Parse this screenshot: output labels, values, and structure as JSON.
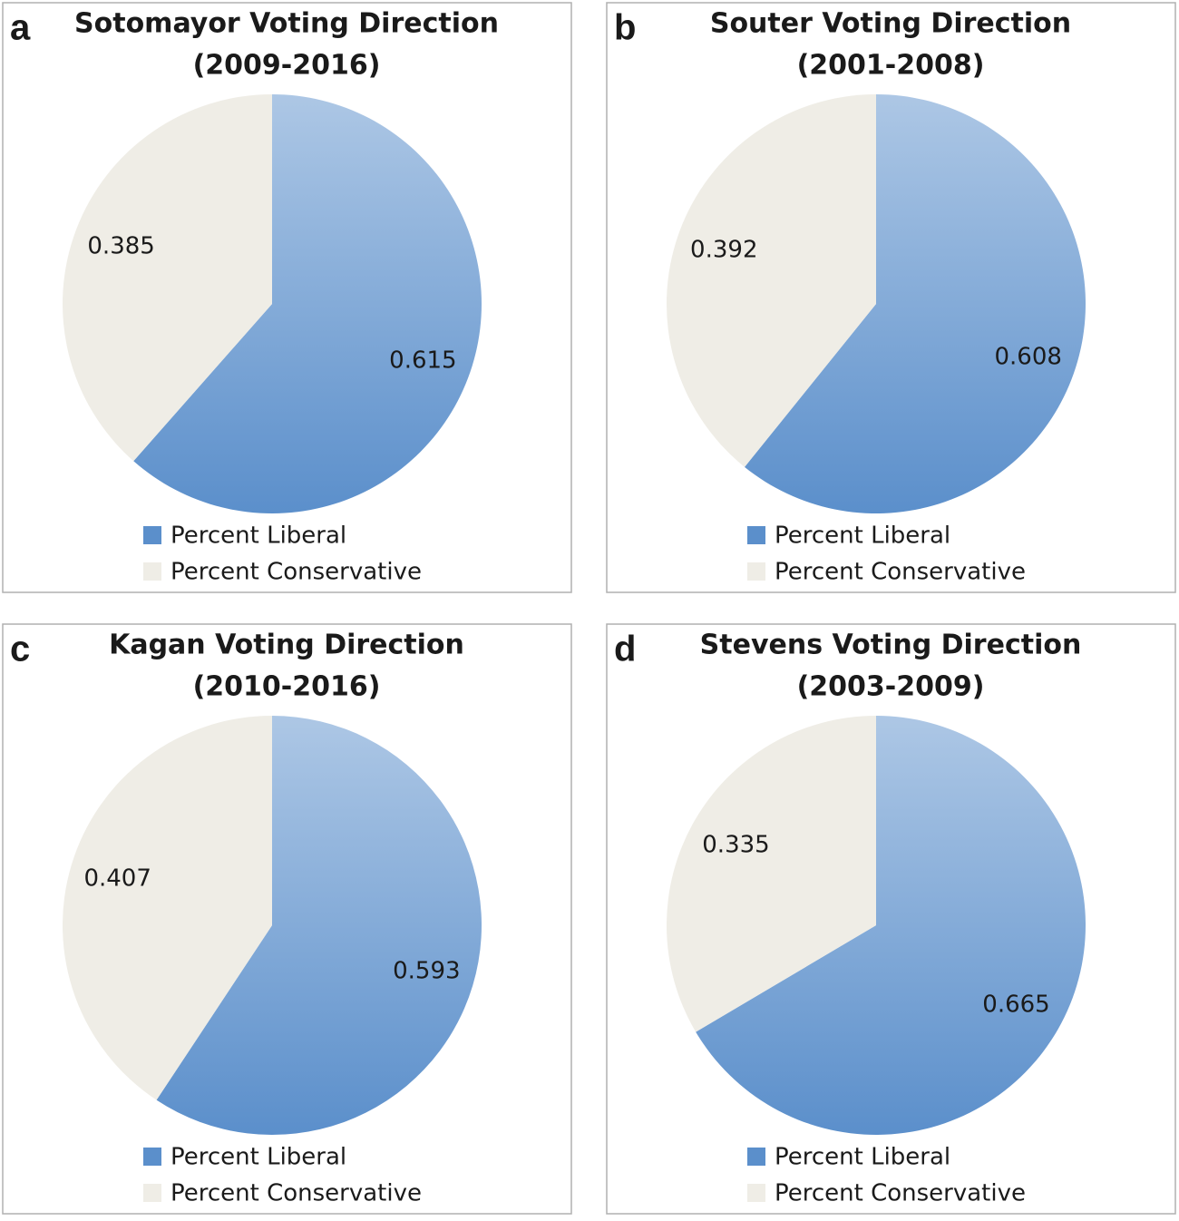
{
  "chart_data": [
    {
      "type": "pie",
      "panel": "a",
      "title": "Sotomayor Voting Direction",
      "subtitle": "(2009-2016)",
      "categories": [
        "Percent Liberal",
        "Percent Conservative"
      ],
      "values": [
        0.615,
        0.385
      ],
      "colors": [
        "#5b8fcb",
        "#efede6"
      ]
    },
    {
      "type": "pie",
      "panel": "b",
      "title": "Souter Voting Direction",
      "subtitle": "(2001-2008)",
      "categories": [
        "Percent Liberal",
        "Percent Conservative"
      ],
      "values": [
        0.608,
        0.392
      ],
      "colors": [
        "#5b8fcb",
        "#efede6"
      ]
    },
    {
      "type": "pie",
      "panel": "c",
      "title": "Kagan Voting Direction",
      "subtitle": "(2010-2016)",
      "categories": [
        "Percent Liberal",
        "Percent Conservative"
      ],
      "values": [
        0.593,
        0.407
      ],
      "colors": [
        "#5b8fcb",
        "#efede6"
      ]
    },
    {
      "type": "pie",
      "panel": "d",
      "title": "Stevens Voting Direction",
      "subtitle": "(2003-2009)",
      "categories": [
        "Percent Liberal",
        "Percent Conservative"
      ],
      "values": [
        0.665,
        0.335
      ],
      "colors": [
        "#5b8fcb",
        "#efede6"
      ]
    }
  ]
}
